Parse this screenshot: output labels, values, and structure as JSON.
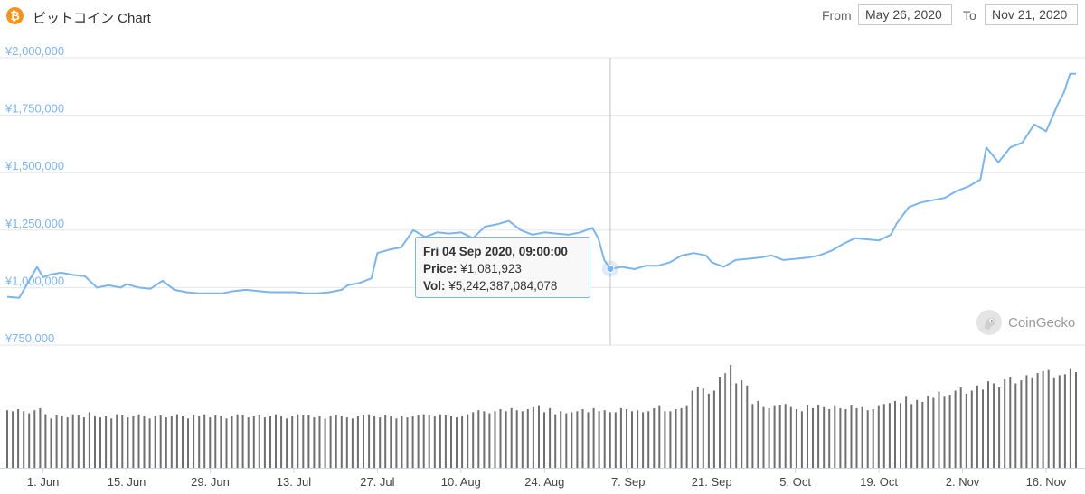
{
  "header": {
    "title": "ビットコイン Chart",
    "from_label": "From",
    "from_value": "May 26, 2020",
    "to_label": "To",
    "to_value": "Nov 21, 2020"
  },
  "tooltip": {
    "date": "Fri 04 Sep 2020, 09:00:00",
    "price_label": "Price:",
    "price_value": "¥1,081,923",
    "vol_label": "Vol:",
    "vol_value": "¥5,242,387,084,078"
  },
  "watermark": {
    "text": "CoinGecko"
  },
  "colors": {
    "line": "#7cb5ec",
    "bars": "#6f6f6f",
    "axis_text": "#7cb5ec",
    "grid": "#e6e6e6"
  },
  "chart_data": {
    "type": "line",
    "title": "ビットコイン Chart",
    "y_ticks": [
      "¥2,000,000",
      "¥1,750,000",
      "¥1,500,000",
      "¥1,250,000",
      "¥1,000,000",
      "¥750,000"
    ],
    "ylim": [
      750000,
      2000000
    ],
    "x_ticks": [
      "1. Jun",
      "15. Jun",
      "29. Jun",
      "13. Jul",
      "27. Jul",
      "10. Aug",
      "24. Aug",
      "7. Sep",
      "21. Sep",
      "5. Oct",
      "19. Oct",
      "2. Nov",
      "16. Nov"
    ],
    "x_tick_dates": [
      "2020-06-01",
      "2020-06-15",
      "2020-06-29",
      "2020-07-13",
      "2020-07-27",
      "2020-08-10",
      "2020-08-24",
      "2020-09-07",
      "2020-09-21",
      "2020-10-05",
      "2020-10-19",
      "2020-11-02",
      "2020-11-16"
    ],
    "grid": true,
    "series": [
      {
        "type": "line",
        "x": [
          "2020-05-26",
          "2020-05-28",
          "2020-05-29",
          "2020-05-31",
          "2020-06-01",
          "2020-06-02",
          "2020-06-04",
          "2020-06-06",
          "2020-06-08",
          "2020-06-10",
          "2020-06-12",
          "2020-06-14",
          "2020-06-15",
          "2020-06-17",
          "2020-06-19",
          "2020-06-21",
          "2020-06-23",
          "2020-06-25",
          "2020-06-27",
          "2020-06-29",
          "2020-07-01",
          "2020-07-03",
          "2020-07-05",
          "2020-07-07",
          "2020-07-09",
          "2020-07-11",
          "2020-07-13",
          "2020-07-15",
          "2020-07-17",
          "2020-07-19",
          "2020-07-21",
          "2020-07-22",
          "2020-07-24",
          "2020-07-26",
          "2020-07-27",
          "2020-07-29",
          "2020-07-31",
          "2020-08-02",
          "2020-08-04",
          "2020-08-06",
          "2020-08-08",
          "2020-08-10",
          "2020-08-12",
          "2020-08-14",
          "2020-08-16",
          "2020-08-18",
          "2020-08-20",
          "2020-08-22",
          "2020-08-24",
          "2020-08-26",
          "2020-08-28",
          "2020-08-30",
          "2020-09-01",
          "2020-09-02",
          "2020-09-03",
          "2020-09-04",
          "2020-09-06",
          "2020-09-08",
          "2020-09-10",
          "2020-09-12",
          "2020-09-14",
          "2020-09-16",
          "2020-09-18",
          "2020-09-20",
          "2020-09-21",
          "2020-09-23",
          "2020-09-25",
          "2020-09-27",
          "2020-09-29",
          "2020-10-01",
          "2020-10-03",
          "2020-10-05",
          "2020-10-07",
          "2020-10-09",
          "2020-10-11",
          "2020-10-13",
          "2020-10-15",
          "2020-10-17",
          "2020-10-19",
          "2020-10-21",
          "2020-10-22",
          "2020-10-24",
          "2020-10-26",
          "2020-10-28",
          "2020-10-30",
          "2020-11-01",
          "2020-11-03",
          "2020-11-05",
          "2020-11-06",
          "2020-11-08",
          "2020-11-10",
          "2020-11-12",
          "2020-11-14",
          "2020-11-16",
          "2020-11-18",
          "2020-11-19",
          "2020-11-20",
          "2020-11-21"
        ],
        "y": [
          960000,
          955000,
          1000000,
          1090000,
          1045000,
          1055000,
          1065000,
          1055000,
          1050000,
          1000000,
          1010000,
          1000000,
          1015000,
          1000000,
          995000,
          1030000,
          990000,
          980000,
          975000,
          975000,
          975000,
          985000,
          990000,
          985000,
          980000,
          980000,
          980000,
          975000,
          975000,
          980000,
          990000,
          1010000,
          1020000,
          1040000,
          1150000,
          1165000,
          1175000,
          1250000,
          1220000,
          1240000,
          1235000,
          1240000,
          1215000,
          1265000,
          1275000,
          1290000,
          1250000,
          1230000,
          1240000,
          1235000,
          1230000,
          1240000,
          1260000,
          1215000,
          1120000,
          1081923,
          1090000,
          1080000,
          1095000,
          1095000,
          1110000,
          1140000,
          1150000,
          1140000,
          1110000,
          1090000,
          1120000,
          1125000,
          1130000,
          1140000,
          1120000,
          1125000,
          1130000,
          1140000,
          1160000,
          1190000,
          1215000,
          1210000,
          1205000,
          1230000,
          1280000,
          1350000,
          1370000,
          1380000,
          1390000,
          1420000,
          1440000,
          1470000,
          1610000,
          1545000,
          1610000,
          1630000,
          1710000,
          1680000,
          1800000,
          1850000,
          1930000,
          1930000
        ]
      }
    ],
    "volume_note": "",
    "volume": {
      "type": "bar",
      "values": [
        56,
        55,
        57,
        55,
        53,
        56,
        58,
        52,
        48,
        51,
        50,
        49,
        52,
        51,
        49,
        54,
        50,
        49,
        50,
        48,
        52,
        51,
        49,
        50,
        52,
        50,
        48,
        50,
        51,
        49,
        50,
        52,
        50,
        48,
        51,
        50,
        52,
        49,
        51,
        50,
        48,
        50,
        52,
        51,
        49,
        50,
        51,
        49,
        50,
        52,
        50,
        48,
        50,
        52,
        51,
        51,
        49,
        50,
        48,
        50,
        51,
        50,
        49,
        48,
        50,
        51,
        52,
        50,
        49,
        51,
        50,
        48,
        50,
        49,
        50,
        51,
        52,
        51,
        50,
        52,
        51,
        50,
        49,
        50,
        52,
        54,
        56,
        55,
        53,
        55,
        57,
        55,
        58,
        56,
        55,
        57,
        59,
        60,
        54,
        58,
        52,
        55,
        53,
        54,
        55,
        57,
        54,
        58,
        55,
        56,
        54,
        54,
        58,
        57,
        55,
        56,
        54,
        55,
        58,
        60,
        55,
        55,
        57,
        58,
        60,
        75,
        79,
        77,
        72,
        75,
        88,
        92,
        100,
        82,
        85,
        80,
        62,
        65,
        59,
        58,
        60,
        61,
        62,
        59,
        57,
        55,
        61,
        58,
        61,
        59,
        57,
        60,
        58,
        57,
        61,
        58,
        59,
        56,
        57,
        60,
        62,
        63,
        65,
        63,
        69,
        62,
        66,
        64,
        70,
        68,
        74,
        69,
        71,
        75,
        78,
        72,
        75,
        80,
        76,
        84,
        82,
        78,
        86,
        88,
        82,
        85,
        90,
        87,
        92,
        94,
        95,
        87,
        90,
        91,
        96,
        93
      ],
      "max_index": 132
    }
  }
}
